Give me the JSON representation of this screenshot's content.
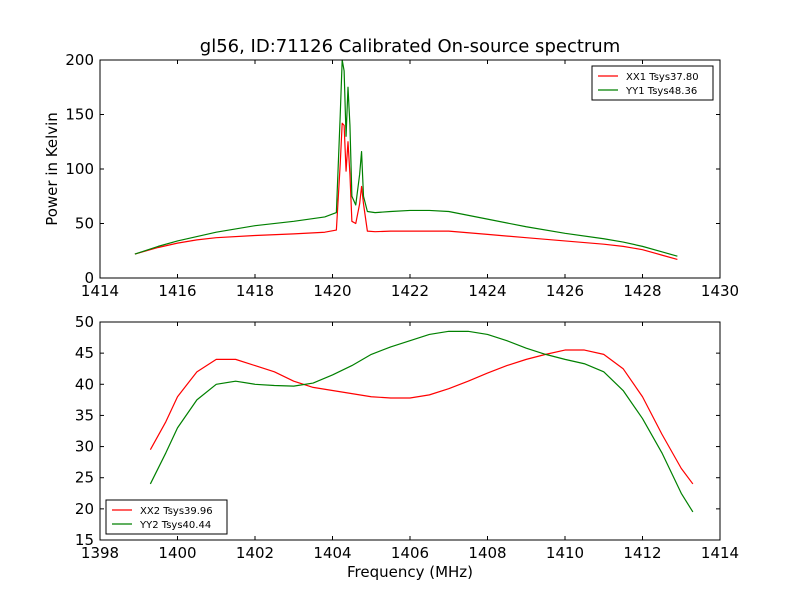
{
  "figure": {
    "title": "gl56, ID:71126 Calibrated On-source spectrum",
    "xlabel": "Frequency (MHz)"
  },
  "chart_data": [
    {
      "type": "line",
      "title": "gl56, ID:71126 Calibrated On-source spectrum",
      "xlabel": "",
      "ylabel": "Power in Kelvin",
      "xlim": [
        1414,
        1430
      ],
      "ylim": [
        0,
        200
      ],
      "xticks": [
        1414,
        1416,
        1418,
        1420,
        1422,
        1424,
        1426,
        1428,
        1430
      ],
      "yticks": [
        0,
        50,
        100,
        150,
        200
      ],
      "legend_position": "top-right",
      "grid": false,
      "series": [
        {
          "name": "XX1 Tsys37.80",
          "color": "#ff0000",
          "x": [
            1414.9,
            1415.5,
            1416.0,
            1416.5,
            1417.0,
            1418.0,
            1419.0,
            1419.8,
            1420.1,
            1420.2,
            1420.25,
            1420.3,
            1420.35,
            1420.4,
            1420.45,
            1420.5,
            1420.6,
            1420.7,
            1420.75,
            1420.8,
            1420.9,
            1421.1,
            1421.5,
            1422.0,
            1423.0,
            1424.0,
            1425.0,
            1426.0,
            1427.0,
            1427.5,
            1428.0,
            1428.5,
            1428.9
          ],
          "y": [
            22,
            28,
            32,
            35,
            37,
            39,
            40.5,
            42,
            44,
            105,
            142,
            140,
            98,
            125,
            95,
            52,
            50,
            68,
            84,
            68,
            43,
            42.5,
            43,
            43,
            43,
            40,
            37,
            34,
            31,
            29,
            26,
            21,
            17
          ]
        },
        {
          "name": "YY1 Tsys48.36",
          "color": "#008000",
          "x": [
            1414.9,
            1415.5,
            1416.0,
            1416.5,
            1417.0,
            1418.0,
            1419.0,
            1419.8,
            1420.1,
            1420.2,
            1420.25,
            1420.3,
            1420.35,
            1420.4,
            1420.45,
            1420.5,
            1420.6,
            1420.7,
            1420.75,
            1420.8,
            1420.9,
            1421.1,
            1421.5,
            1422.0,
            1422.5,
            1423.0,
            1424.0,
            1425.0,
            1426.0,
            1427.0,
            1427.5,
            1428.0,
            1428.5,
            1428.9
          ],
          "y": [
            22,
            29,
            34,
            38,
            42,
            48,
            52,
            56,
            60,
            150,
            200,
            190,
            130,
            175,
            140,
            75,
            67,
            95,
            116,
            75,
            61,
            60,
            61,
            62,
            62,
            61,
            54,
            47,
            41,
            36,
            33,
            29,
            24,
            20
          ]
        }
      ]
    },
    {
      "type": "line",
      "title": "",
      "xlabel": "Frequency (MHz)",
      "ylabel": "",
      "xlim": [
        1398,
        1414
      ],
      "ylim": [
        15,
        50
      ],
      "xticks": [
        1398,
        1400,
        1402,
        1404,
        1406,
        1408,
        1410,
        1412,
        1414
      ],
      "yticks": [
        15,
        20,
        25,
        30,
        35,
        40,
        45,
        50
      ],
      "legend_position": "bottom-left",
      "grid": false,
      "series": [
        {
          "name": "XX2 Tsys39.96",
          "color": "#ff0000",
          "x": [
            1399.3,
            1399.7,
            1400.0,
            1400.5,
            1401.0,
            1401.5,
            1402.0,
            1402.5,
            1403.0,
            1403.5,
            1404.0,
            1404.5,
            1405.0,
            1405.5,
            1406.0,
            1406.5,
            1407.0,
            1407.5,
            1408.0,
            1408.5,
            1409.0,
            1409.5,
            1410.0,
            1410.5,
            1411.0,
            1411.5,
            1412.0,
            1412.5,
            1413.0,
            1413.3
          ],
          "y": [
            29.5,
            34,
            38,
            42,
            44,
            44,
            43,
            42,
            40.5,
            39.5,
            39,
            38.5,
            38,
            37.8,
            37.8,
            38.3,
            39.3,
            40.5,
            41.8,
            43,
            44,
            44.8,
            45.5,
            45.5,
            44.8,
            42.5,
            38,
            32,
            26.5,
            24
          ]
        },
        {
          "name": "YY2 Tsys40.44",
          "color": "#008000",
          "x": [
            1399.3,
            1399.7,
            1400.0,
            1400.5,
            1401.0,
            1401.5,
            1402.0,
            1402.5,
            1403.0,
            1403.5,
            1404.0,
            1404.5,
            1405.0,
            1405.5,
            1406.0,
            1406.5,
            1407.0,
            1407.5,
            1408.0,
            1408.5,
            1409.0,
            1409.5,
            1410.0,
            1410.5,
            1411.0,
            1411.5,
            1412.0,
            1412.5,
            1413.0,
            1413.3
          ],
          "y": [
            24,
            29,
            33,
            37.5,
            40,
            40.5,
            40,
            39.8,
            39.7,
            40.2,
            41.5,
            43,
            44.8,
            46,
            47,
            48,
            48.5,
            48.5,
            48,
            47,
            45.8,
            44.8,
            44,
            43.3,
            42,
            39,
            34.5,
            29,
            22.5,
            19.5
          ]
        }
      ]
    }
  ]
}
